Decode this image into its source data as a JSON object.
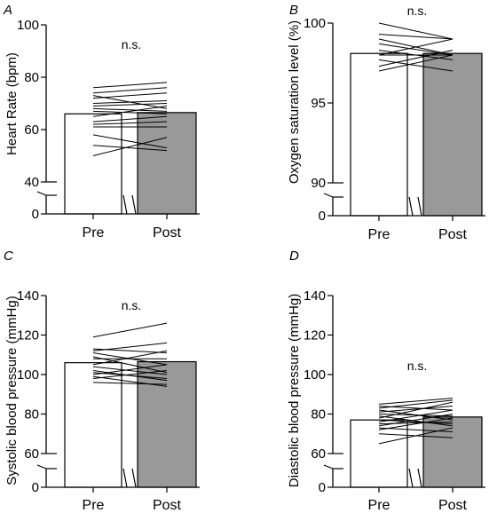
{
  "colors": {
    "post_bar": "#999999",
    "pre_bar": "#ffffff",
    "stroke": "#000000"
  },
  "chart_data": [
    {
      "panel": "A",
      "type": "bar",
      "categories": [
        "Pre",
        "Post"
      ],
      "values": [
        66,
        66.5
      ],
      "ylabel": "Heart Rate (bpm)",
      "ylim": [
        40,
        100
      ],
      "yticks": [
        40,
        60,
        80,
        100
      ],
      "axis_break_zero": "0",
      "annotation": "n.s.",
      "paired_series": [
        [
          50,
          57
        ],
        [
          54,
          52
        ],
        [
          58,
          53
        ],
        [
          61,
          61
        ],
        [
          62,
          63
        ],
        [
          63,
          65
        ],
        [
          65,
          69
        ],
        [
          67,
          66
        ],
        [
          68,
          67
        ],
        [
          69,
          70
        ],
        [
          70,
          71
        ],
        [
          72,
          74
        ],
        [
          73,
          68
        ],
        [
          74,
          76
        ],
        [
          76,
          78
        ]
      ]
    },
    {
      "panel": "B",
      "type": "bar",
      "categories": [
        "Pre",
        "Post"
      ],
      "values": [
        98.1,
        98.1
      ],
      "ylabel": "Oxygen saturation level (%)",
      "ylim": [
        90,
        100
      ],
      "yticks": [
        90,
        95,
        100
      ],
      "axis_break_zero": "0",
      "annotation": "n.s.",
      "paired_series": [
        [
          97,
          98
        ],
        [
          97.3,
          98.3
        ],
        [
          97.7,
          97
        ],
        [
          98,
          98
        ],
        [
          98,
          99
        ],
        [
          98.3,
          97.7
        ],
        [
          98.7,
          98
        ],
        [
          99,
          98
        ],
        [
          99.3,
          99
        ],
        [
          100,
          99
        ]
      ]
    },
    {
      "panel": "C",
      "type": "bar",
      "categories": [
        "Pre",
        "Post"
      ],
      "values": [
        106,
        106.5
      ],
      "ylabel": "Systolic blood pressure (mmHg)",
      "ylim": [
        60,
        140
      ],
      "yticks": [
        60,
        80,
        100,
        120,
        140
      ],
      "axis_break_zero": "0",
      "annotation": "n.s.",
      "paired_series": [
        [
          96,
          95
        ],
        [
          98,
          102
        ],
        [
          99,
          94
        ],
        [
          100,
          105
        ],
        [
          101,
          98
        ],
        [
          102,
          97
        ],
        [
          104,
          100
        ],
        [
          105,
          112
        ],
        [
          108,
          108
        ],
        [
          109,
          101
        ],
        [
          111,
          105
        ],
        [
          112,
          116
        ],
        [
          113,
          111
        ],
        [
          119,
          126
        ]
      ]
    },
    {
      "panel": "D",
      "type": "bar",
      "categories": [
        "Pre",
        "Post"
      ],
      "values": [
        77,
        78.5
      ],
      "ylabel": "Diastolic blood pressure (mmHg)",
      "ylim": [
        60,
        140
      ],
      "yticks": [
        60,
        80,
        100,
        120,
        140
      ],
      "axis_break_zero": "0",
      "annotation": "n.s.",
      "paired_series": [
        [
          65,
          73
        ],
        [
          70,
          68
        ],
        [
          72,
          78
        ],
        [
          73,
          71
        ],
        [
          74,
          80
        ],
        [
          75,
          76
        ],
        [
          76,
          82
        ],
        [
          77,
          75
        ],
        [
          78,
          86
        ],
        [
          79,
          74
        ],
        [
          80,
          79
        ],
        [
          81,
          84
        ],
        [
          82,
          77
        ],
        [
          83,
          87
        ],
        [
          84,
          82
        ],
        [
          85,
          88
        ]
      ]
    }
  ]
}
